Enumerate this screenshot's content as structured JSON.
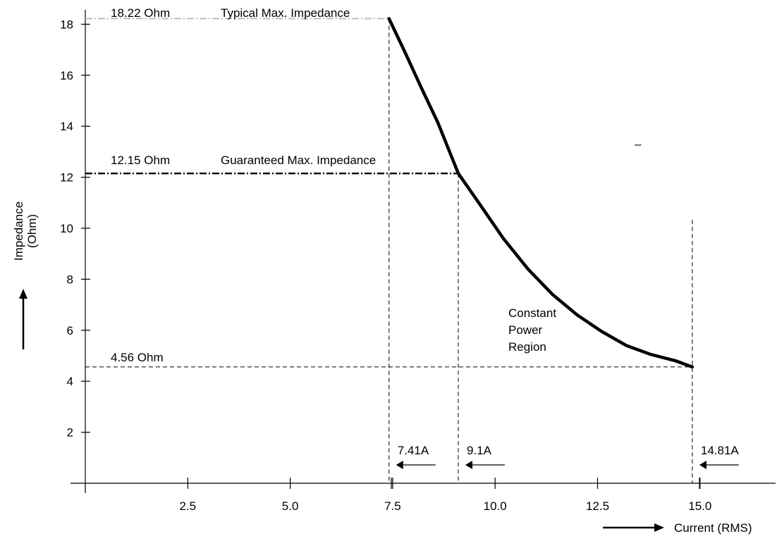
{
  "chart_data": {
    "type": "line",
    "title": "",
    "xlabel": "Current (RMS)",
    "ylabel": "Impedance\n(Ohm)",
    "xlim": [
      0,
      15.0
    ],
    "ylim": [
      0,
      18.8
    ],
    "x_ticks": [
      "2.5",
      "5.0",
      "7.5",
      "10.0",
      "12.5",
      "15.0"
    ],
    "y_ticks": [
      "2",
      "4",
      "6",
      "8",
      "10",
      "12",
      "14",
      "16",
      "18"
    ],
    "grid": false,
    "series": [
      {
        "x": [
          7.41,
          7.8,
          8.2,
          8.6,
          9.1,
          9.6,
          10.2,
          10.8,
          11.4,
          12.0,
          12.6,
          13.2,
          13.8,
          14.4,
          14.81
        ],
        "y": [
          18.22,
          16.9,
          15.5,
          14.15,
          12.15,
          11.0,
          9.6,
          8.4,
          7.4,
          6.6,
          5.95,
          5.4,
          5.05,
          4.8,
          4.56
        ]
      }
    ],
    "reference_lines": {
      "typical": {
        "value": "18.22 Ohm",
        "label": "Typical Max. Impedance",
        "y": 18.22,
        "x_end": 7.41,
        "color": "#bdbdbd"
      },
      "guaranteed": {
        "value": "12.15 Ohm",
        "label": "Guaranteed Max. Impedance",
        "y": 12.15,
        "x_end": 9.1,
        "color": "#000000"
      },
      "minimum": {
        "value": "4.56 Ohm",
        "y": 4.56,
        "x_end": 14.81
      }
    },
    "current_markers": [
      {
        "label": "7.41A",
        "x": 7.41
      },
      {
        "label": "9.1A",
        "x": 9.1
      },
      {
        "label": "14.81A",
        "x": 14.81
      }
    ],
    "annotations": {
      "region_line1": "Constant",
      "region_line2": "Power",
      "region_line3": "Region",
      "dash_mark": "–"
    }
  }
}
